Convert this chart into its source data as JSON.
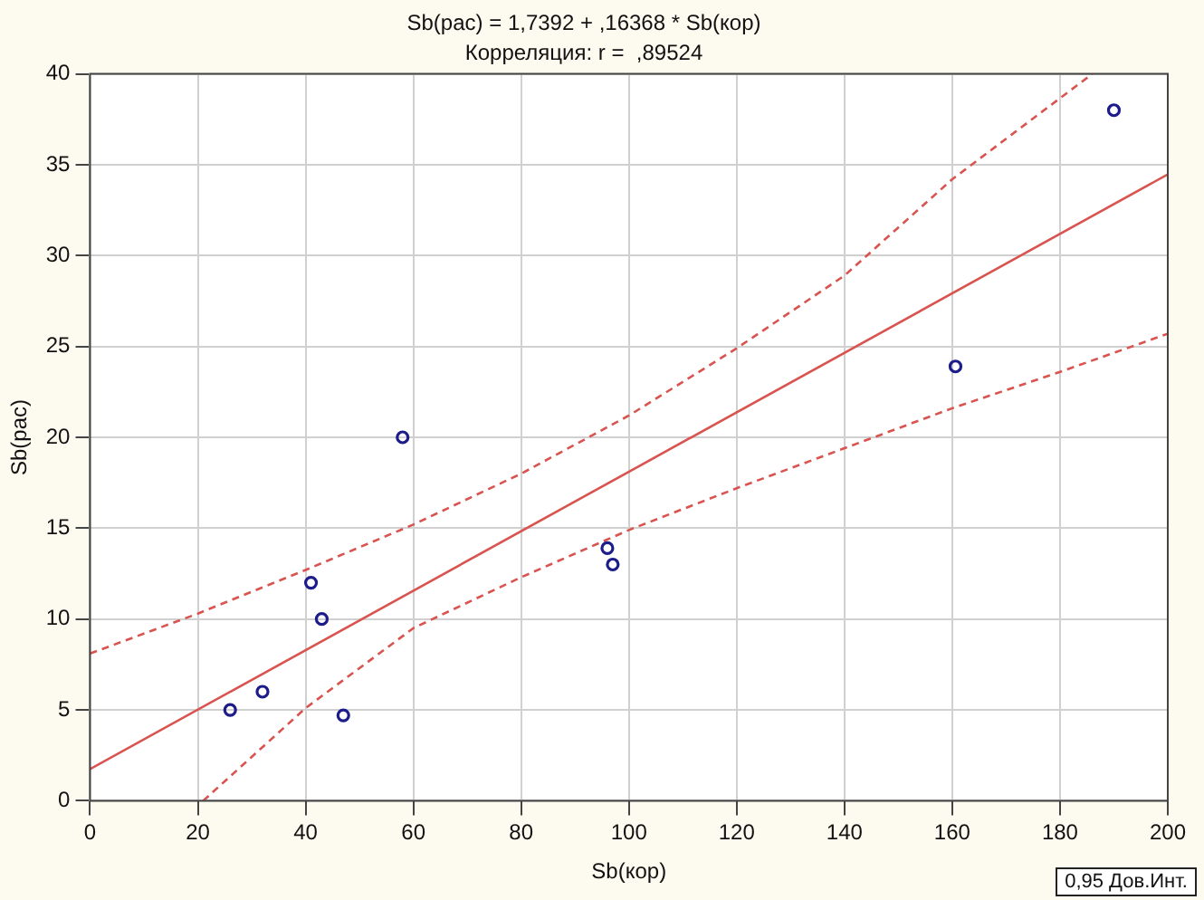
{
  "chart_data": {
    "type": "scatter",
    "title": "Sb(рас) = 1,7392 + ,16368 * Sb(кор)",
    "subtitle": "Корреляция: r =  ,89524",
    "xlabel": "Sb(кор)",
    "ylabel": "Sb(рас)",
    "xlim": [
      0,
      200
    ],
    "xticks": [
      0,
      20,
      40,
      60,
      80,
      100,
      120,
      140,
      160,
      180,
      200
    ],
    "ylim": [
      0,
      40
    ],
    "yticks": [
      0,
      5,
      10,
      15,
      20,
      25,
      30,
      35,
      40
    ],
    "grid": true,
    "legend": false,
    "annotations": [
      "0,95 Дов.Инт."
    ],
    "series": [
      {
        "type": "scatter",
        "color": "#1c1c8a",
        "marker": "circle",
        "x": [
          26,
          32,
          41,
          43,
          47,
          58,
          96,
          97,
          160.6,
          190
        ],
        "values": [
          5,
          6,
          12,
          10,
          4.7,
          20,
          13.9,
          13,
          23.9,
          38
        ]
      },
      {
        "type": "line",
        "color": "#d9534f",
        "marker": "none",
        "line_style": "solid",
        "x": [
          0,
          200
        ],
        "values": [
          1.74,
          34.47
        ]
      },
      {
        "type": "line",
        "color": "#d9534f",
        "marker": "none",
        "line_style": "dashed",
        "x": [
          0,
          20,
          40,
          60,
          80,
          100,
          120,
          140,
          160,
          186
        ],
        "values": [
          8.1,
          10.3,
          12.7,
          15.2,
          18.0,
          21.2,
          24.9,
          28.9,
          34.2,
          40
        ]
      },
      {
        "type": "line",
        "color": "#d9534f",
        "marker": "none",
        "line_style": "dashed",
        "x": [
          21,
          40,
          60,
          80,
          100,
          120,
          140,
          160,
          180,
          200
        ],
        "values": [
          0,
          5.1,
          9.5,
          12.3,
          14.9,
          17.2,
          19.4,
          21.6,
          23.6,
          25.7
        ]
      }
    ]
  }
}
